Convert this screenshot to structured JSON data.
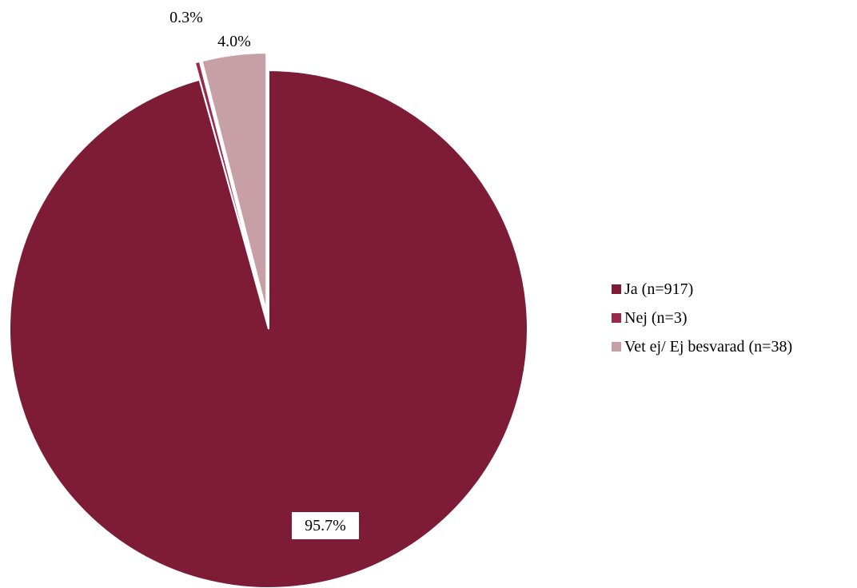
{
  "chart_data": {
    "type": "pie",
    "title": "",
    "slices": [
      {
        "label": "Ja (n=917)",
        "value": 95.7,
        "data_label": "95.7%",
        "color": "#7e1c37"
      },
      {
        "label": "Nej (n=3)",
        "value": 0.3,
        "data_label": "0.3%",
        "color": "#9a2a4a"
      },
      {
        "label": "Vet ej/ Ej besvarad (n=38)",
        "value": 4.0,
        "data_label": "4.0%",
        "color": "#c6a0a6"
      }
    ],
    "legend_position": "right",
    "start_angle_deg": 0,
    "direction": "clockwise",
    "exploded": [
      "Nej (n=3)",
      "Vet ej/ Ej besvarad (n=38)"
    ]
  }
}
